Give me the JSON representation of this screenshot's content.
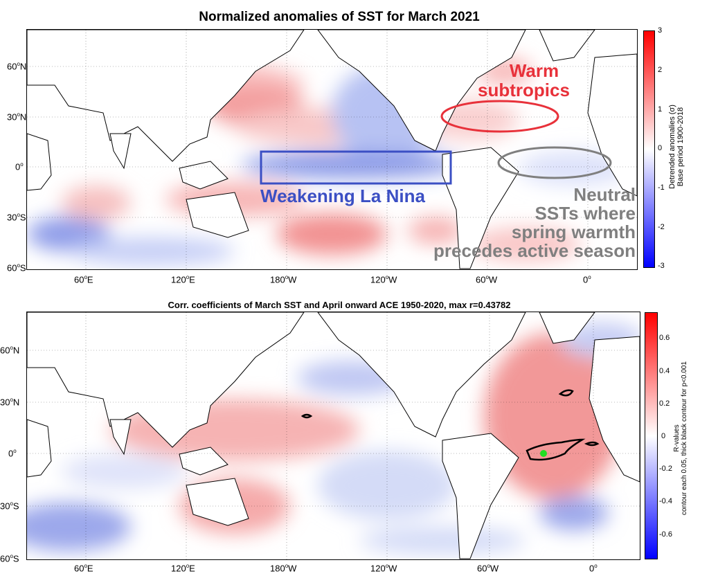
{
  "colors": {
    "warm": "#e8313a",
    "cool": "#3b4fc4",
    "neutral": "#7f7f7f",
    "land": "#ffffff",
    "coast": "#000000",
    "green_dot": "#22dd22"
  },
  "top_panel": {
    "title": "Normalized anomalies of SST for March 2021",
    "lat_ticks": [
      "60",
      "30",
      "0",
      "30",
      "60"
    ],
    "lat_suffix": [
      "N",
      "N",
      "",
      "S",
      "S"
    ],
    "lon_ticks": [
      "60",
      "120",
      "180",
      "120",
      "60",
      "0"
    ],
    "lon_suffix": [
      "E",
      "E",
      "W",
      "W",
      "W",
      ""
    ],
    "colorbar": {
      "ticks": [
        "3",
        "2",
        "1",
        "0",
        "-1",
        "-2",
        "-3"
      ],
      "label_line1": "Detrended anomalies (σ)",
      "label_line2": "Base period 1900-2018"
    },
    "annotations": {
      "warm_line1": "Warm",
      "warm_line2": "subtropics",
      "lanina": "Weakening La Nina",
      "neutral_line1": "Neutral",
      "neutral_line2": "SSTs where",
      "neutral_line3": "spring warmth",
      "neutral_line4": "precedes active season"
    }
  },
  "bottom_panel": {
    "title": "Corr. coefficients of March SST and April onward ACE 1950-2020, max r=0.43782",
    "lat_ticks": [
      "60",
      "30",
      "0",
      "30",
      "60"
    ],
    "lat_suffix": [
      "N",
      "N",
      "",
      "S",
      "S"
    ],
    "lon_ticks": [
      "60",
      "120",
      "180",
      "120",
      "60",
      "0"
    ],
    "lon_suffix": [
      "E",
      "E",
      "W",
      "W",
      "W",
      ""
    ],
    "colorbar": {
      "ticks": [
        "0.6",
        "0.4",
        "0.2",
        "0",
        "-0.2",
        "-0.4",
        "-0.6"
      ],
      "label_line1": "R-values",
      "label_line2": "contour each 0.05, thick black contour for p<0.001"
    }
  }
}
